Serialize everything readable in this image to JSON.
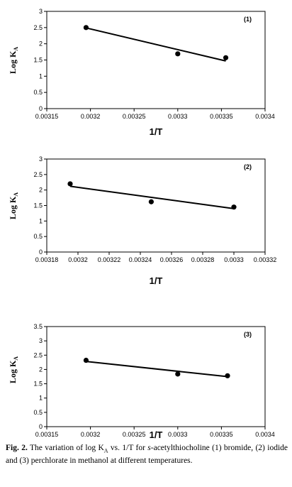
{
  "chart_data": [
    {
      "type": "scatter",
      "panel_label": "(1)",
      "xlabel": "1/T",
      "ylabel": "Log K",
      "ylabel_sub": "A",
      "x_ticks": [
        "0.00315",
        "0.0032",
        "0.00325",
        "0.0033",
        "0.00335",
        "0.0034"
      ],
      "y_ticks": [
        "0",
        "0.5",
        "1",
        "1.5",
        "2",
        "2.5",
        "3"
      ],
      "xlim": [
        0.00315,
        0.0034
      ],
      "ylim": [
        0,
        3
      ],
      "points": [
        {
          "x": 0.003195,
          "y": 2.5
        },
        {
          "x": 0.0033,
          "y": 1.69
        },
        {
          "x": 0.003355,
          "y": 1.57
        }
      ],
      "trendline": {
        "x": [
          0.003195,
          0.003355
        ],
        "y": [
          2.49,
          1.47
        ]
      }
    },
    {
      "type": "scatter",
      "panel_label": "(2)",
      "xlabel": "1/T",
      "ylabel": "Log K",
      "ylabel_sub": "A",
      "x_ticks": [
        "0.00318",
        "0.0032",
        "0.00322",
        "0.00324",
        "0.00326",
        "0.00328",
        "0.0033",
        "0.00332"
      ],
      "y_ticks": [
        "0",
        "0.5",
        "1",
        "1.5",
        "2",
        "2.5",
        "3"
      ],
      "xlim": [
        0.00318,
        0.00332
      ],
      "ylim": [
        0,
        3
      ],
      "points": [
        {
          "x": 0.003195,
          "y": 2.2
        },
        {
          "x": 0.003247,
          "y": 1.62
        },
        {
          "x": 0.0033,
          "y": 1.45
        }
      ],
      "trendline": {
        "x": [
          0.003195,
          0.0033
        ],
        "y": [
          2.12,
          1.4
        ]
      }
    },
    {
      "type": "scatter",
      "panel_label": "(3)",
      "xlabel": "1/T",
      "ylabel": "Log K",
      "ylabel_sub": "A",
      "x_ticks": [
        "0.00315",
        "0.0032",
        "0.00325",
        "0.0033",
        "0.00335",
        "0.0034"
      ],
      "y_ticks": [
        "0",
        "0.5",
        "1",
        "1.5",
        "2",
        "2.5",
        "3",
        "3.5"
      ],
      "xlim": [
        0.00315,
        0.0034
      ],
      "ylim": [
        0,
        3.5
      ],
      "points": [
        {
          "x": 0.003195,
          "y": 2.32
        },
        {
          "x": 0.0033,
          "y": 1.84
        },
        {
          "x": 0.003357,
          "y": 1.78
        }
      ],
      "trendline": {
        "x": [
          0.003195,
          0.003357
        ],
        "y": [
          2.28,
          1.75
        ]
      }
    }
  ],
  "caption": {
    "label": "Fig. 2.",
    "text_1": " The variation of log K",
    "sub": "A",
    "text_2": " vs. 1/T for ",
    "italic": "s",
    "text_3": "-acetylthiocholine (1) bromide, (2) iodide and (3) perchlorate in methanol at different temperatures."
  }
}
